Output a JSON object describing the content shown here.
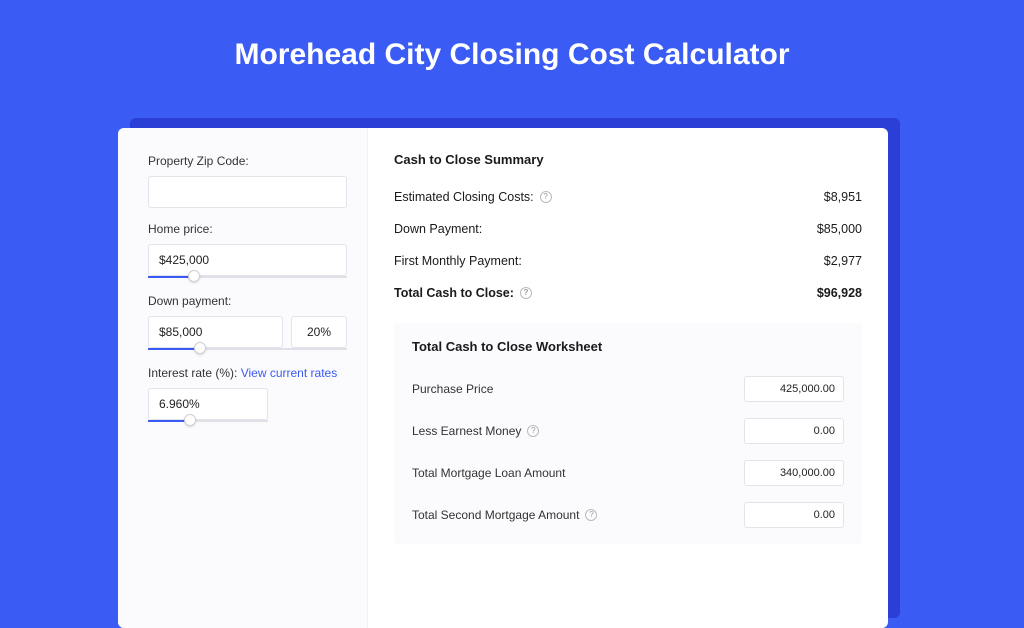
{
  "title": "Morehead City Closing Cost Calculator",
  "colors": {
    "page_bg": "#3b5bf5",
    "shadow": "#2a3fd6",
    "card_bg": "#ffffff",
    "panel_bg": "#fbfbfe",
    "border": "#e3e3ea",
    "text": "#1a1a1a",
    "link": "#3b5bf5"
  },
  "form": {
    "zip": {
      "label": "Property Zip Code:",
      "value": ""
    },
    "home_price": {
      "label": "Home price:",
      "value": "$425,000",
      "slider_pct": 23
    },
    "down_payment": {
      "label": "Down payment:",
      "value": "$85,000",
      "pct": "20%",
      "slider_pct": 26
    },
    "interest_rate": {
      "label": "Interest rate (%):",
      "link_text": "View current rates",
      "value": "6.960%",
      "slider_pct": 35
    }
  },
  "summary": {
    "title": "Cash to Close Summary",
    "rows": [
      {
        "label": "Estimated Closing Costs:",
        "help": true,
        "value": "$8,951",
        "bold": false
      },
      {
        "label": "Down Payment:",
        "help": false,
        "value": "$85,000",
        "bold": false
      },
      {
        "label": "First Monthly Payment:",
        "help": false,
        "value": "$2,977",
        "bold": false
      },
      {
        "label": "Total Cash to Close:",
        "help": true,
        "value": "$96,928",
        "bold": true
      }
    ]
  },
  "worksheet": {
    "title": "Total Cash to Close Worksheet",
    "rows": [
      {
        "label": "Purchase Price",
        "help": false,
        "value": "425,000.00"
      },
      {
        "label": "Less Earnest Money",
        "help": true,
        "value": "0.00"
      },
      {
        "label": "Total Mortgage Loan Amount",
        "help": false,
        "value": "340,000.00"
      },
      {
        "label": "Total Second Mortgage Amount",
        "help": true,
        "value": "0.00"
      }
    ]
  }
}
